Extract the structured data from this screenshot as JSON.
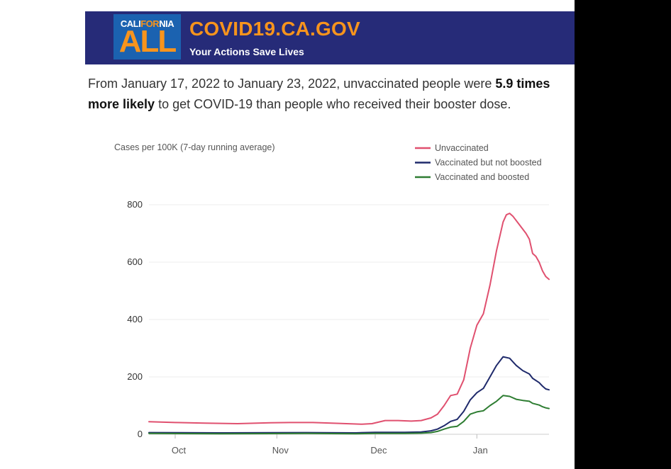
{
  "banner": {
    "logo_top_pre": "CALI",
    "logo_top_hl": "FOR",
    "logo_top_post": "NIA",
    "logo_main": "ALL",
    "site_title": "COVID19.CA.GOV",
    "tagline": "Your Actions Save Lives"
  },
  "headline": {
    "part1": "From January 17, 2022 to January 23, 2022, unvaccinated people were ",
    "bold": "5.9 times more likely",
    "part2": " to get COVID-19 than people who received their booster dose."
  },
  "colors": {
    "banner_bg": "#262b78",
    "brand_orange": "#f7941d",
    "logo_blue": "#1b62b0",
    "unvaccinated": "#e0506f",
    "vaccinated_not_boosted": "#1f2a6b",
    "vaccinated_boosted": "#2e7d32"
  },
  "chart_data": {
    "type": "line",
    "title": "",
    "ylabel": "Cases per 100K (7-day running average)",
    "xlabel": "",
    "ylim": [
      0,
      800
    ],
    "yticks": [
      0,
      200,
      400,
      600,
      800
    ],
    "xlim": [
      "2021-09-23",
      "2022-01-23"
    ],
    "xticks": [
      {
        "date": "2021-10-01",
        "label": "Oct"
      },
      {
        "date": "2021-11-01",
        "label": "Nov"
      },
      {
        "date": "2021-12-01",
        "label": "Dec"
      },
      {
        "date": "2022-01-01",
        "label": "Jan"
      }
    ],
    "grid": "horizontal",
    "legend_position": "top-right",
    "series": [
      {
        "name": "Unvaccinated",
        "color": "#e0506f",
        "points": [
          [
            "2021-09-23",
            44
          ],
          [
            "2021-10-01",
            41
          ],
          [
            "2021-10-10",
            39
          ],
          [
            "2021-10-20",
            37
          ],
          [
            "2021-10-30",
            40
          ],
          [
            "2021-11-05",
            41
          ],
          [
            "2021-11-12",
            41
          ],
          [
            "2021-11-20",
            38
          ],
          [
            "2021-11-27",
            35
          ],
          [
            "2021-11-30",
            37
          ],
          [
            "2021-12-04",
            48
          ],
          [
            "2021-12-08",
            48
          ],
          [
            "2021-12-12",
            46
          ],
          [
            "2021-12-15",
            48
          ],
          [
            "2021-12-18",
            57
          ],
          [
            "2021-12-20",
            70
          ],
          [
            "2021-12-22",
            100
          ],
          [
            "2021-12-24",
            135
          ],
          [
            "2021-12-26",
            140
          ],
          [
            "2021-12-28",
            190
          ],
          [
            "2021-12-30",
            300
          ],
          [
            "2022-01-01",
            380
          ],
          [
            "2022-01-03",
            420
          ],
          [
            "2022-01-05",
            520
          ],
          [
            "2022-01-07",
            640
          ],
          [
            "2022-01-09",
            740
          ],
          [
            "2022-01-10",
            765
          ],
          [
            "2022-01-11",
            770
          ],
          [
            "2022-01-12",
            760
          ],
          [
            "2022-01-14",
            730
          ],
          [
            "2022-01-16",
            700
          ],
          [
            "2022-01-17",
            680
          ],
          [
            "2022-01-18",
            630
          ],
          [
            "2022-01-19",
            620
          ],
          [
            "2022-01-20",
            600
          ],
          [
            "2022-01-21",
            570
          ],
          [
            "2022-01-22",
            550
          ],
          [
            "2022-01-23",
            540
          ]
        ]
      },
      {
        "name": "Vaccinated but not boosted",
        "color": "#1f2a6b",
        "points": [
          [
            "2021-09-23",
            6
          ],
          [
            "2021-10-15",
            5
          ],
          [
            "2021-11-10",
            6
          ],
          [
            "2021-11-25",
            5
          ],
          [
            "2021-12-01",
            7
          ],
          [
            "2021-12-10",
            7
          ],
          [
            "2021-12-15",
            8
          ],
          [
            "2021-12-18",
            12
          ],
          [
            "2021-12-20",
            18
          ],
          [
            "2021-12-22",
            30
          ],
          [
            "2021-12-24",
            45
          ],
          [
            "2021-12-26",
            52
          ],
          [
            "2021-12-28",
            80
          ],
          [
            "2021-12-30",
            120
          ],
          [
            "2022-01-01",
            145
          ],
          [
            "2022-01-03",
            160
          ],
          [
            "2022-01-05",
            200
          ],
          [
            "2022-01-07",
            240
          ],
          [
            "2022-01-09",
            270
          ],
          [
            "2022-01-11",
            265
          ],
          [
            "2022-01-13",
            240
          ],
          [
            "2022-01-15",
            222
          ],
          [
            "2022-01-17",
            210
          ],
          [
            "2022-01-18",
            195
          ],
          [
            "2022-01-20",
            180
          ],
          [
            "2022-01-21",
            168
          ],
          [
            "2022-01-22",
            158
          ],
          [
            "2022-01-23",
            155
          ]
        ]
      },
      {
        "name": "Vaccinated and boosted",
        "color": "#2e7d32",
        "points": [
          [
            "2021-09-23",
            3
          ],
          [
            "2021-10-15",
            2
          ],
          [
            "2021-11-10",
            3
          ],
          [
            "2021-11-25",
            2
          ],
          [
            "2021-12-01",
            3
          ],
          [
            "2021-12-10",
            3
          ],
          [
            "2021-12-15",
            4
          ],
          [
            "2021-12-18",
            6
          ],
          [
            "2021-12-20",
            10
          ],
          [
            "2021-12-22",
            18
          ],
          [
            "2021-12-24",
            25
          ],
          [
            "2021-12-26",
            28
          ],
          [
            "2021-12-28",
            45
          ],
          [
            "2021-12-30",
            70
          ],
          [
            "2022-01-01",
            78
          ],
          [
            "2022-01-03",
            82
          ],
          [
            "2022-01-05",
            100
          ],
          [
            "2022-01-07",
            115
          ],
          [
            "2022-01-09",
            135
          ],
          [
            "2022-01-11",
            132
          ],
          [
            "2022-01-13",
            122
          ],
          [
            "2022-01-15",
            118
          ],
          [
            "2022-01-17",
            115
          ],
          [
            "2022-01-18",
            108
          ],
          [
            "2022-01-20",
            102
          ],
          [
            "2022-01-21",
            96
          ],
          [
            "2022-01-22",
            92
          ],
          [
            "2022-01-23",
            90
          ]
        ]
      }
    ]
  }
}
